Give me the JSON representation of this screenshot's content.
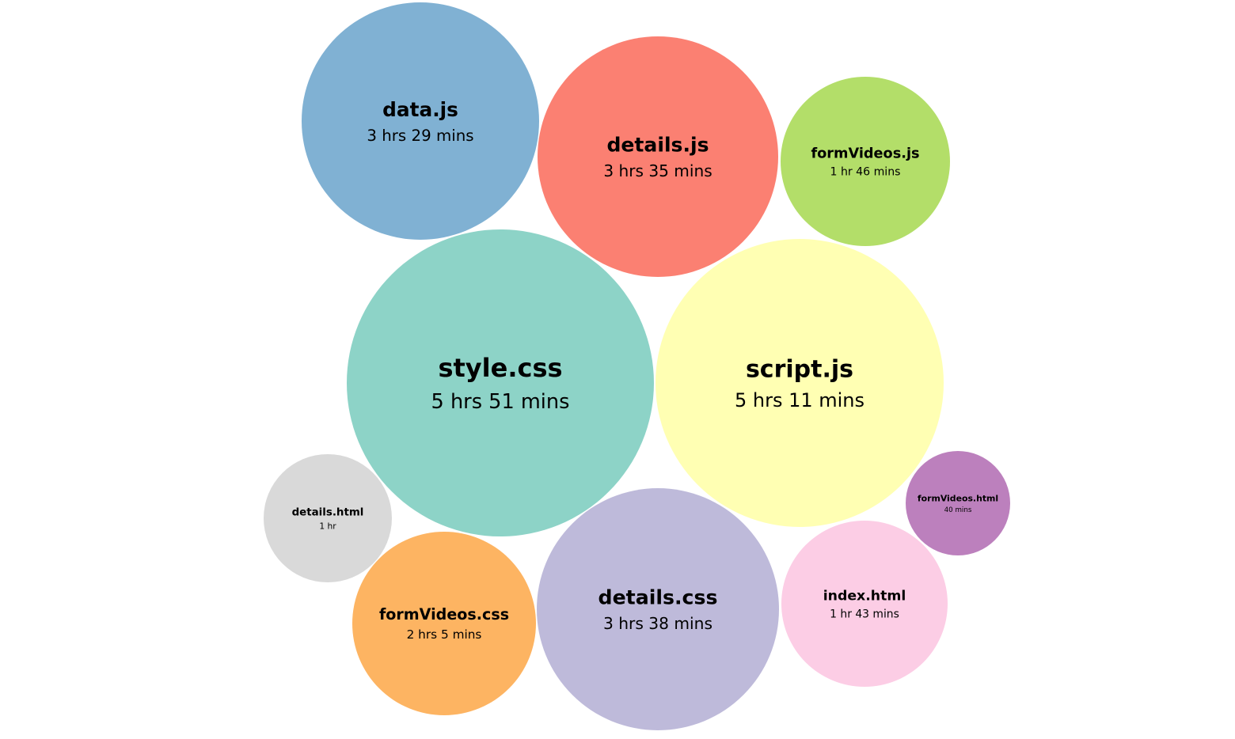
{
  "chart_data": {
    "type": "bubble",
    "unit": "minutes",
    "items": [
      {
        "name": "style.css",
        "label": "5 hrs 51 mins",
        "minutes": 351,
        "color": "#8dd3c7"
      },
      {
        "name": "script.js",
        "label": "5 hrs 11 mins",
        "minutes": 311,
        "color": "#ffffb3"
      },
      {
        "name": "details.css",
        "label": "3 hrs 38 mins",
        "minutes": 218,
        "color": "#bebada"
      },
      {
        "name": "details.js",
        "label": "3 hrs 35 mins",
        "minutes": 215,
        "color": "#fb8072"
      },
      {
        "name": "data.js",
        "label": "3 hrs 29 mins",
        "minutes": 209,
        "color": "#80b1d3"
      },
      {
        "name": "formVideos.css",
        "label": "2 hrs 5 mins",
        "minutes": 125,
        "color": "#fdb462"
      },
      {
        "name": "formVideos.js",
        "label": "1 hr 46 mins",
        "minutes": 106,
        "color": "#b3de69"
      },
      {
        "name": "index.html",
        "label": "1 hr 43 mins",
        "minutes": 103,
        "color": "#fccde5"
      },
      {
        "name": "details.html",
        "label": "1 hr",
        "minutes": 60,
        "color": "#d9d9d9"
      },
      {
        "name": "formVideos.html",
        "label": "40 mins",
        "minutes": 40,
        "color": "#bc80bd"
      }
    ]
  }
}
